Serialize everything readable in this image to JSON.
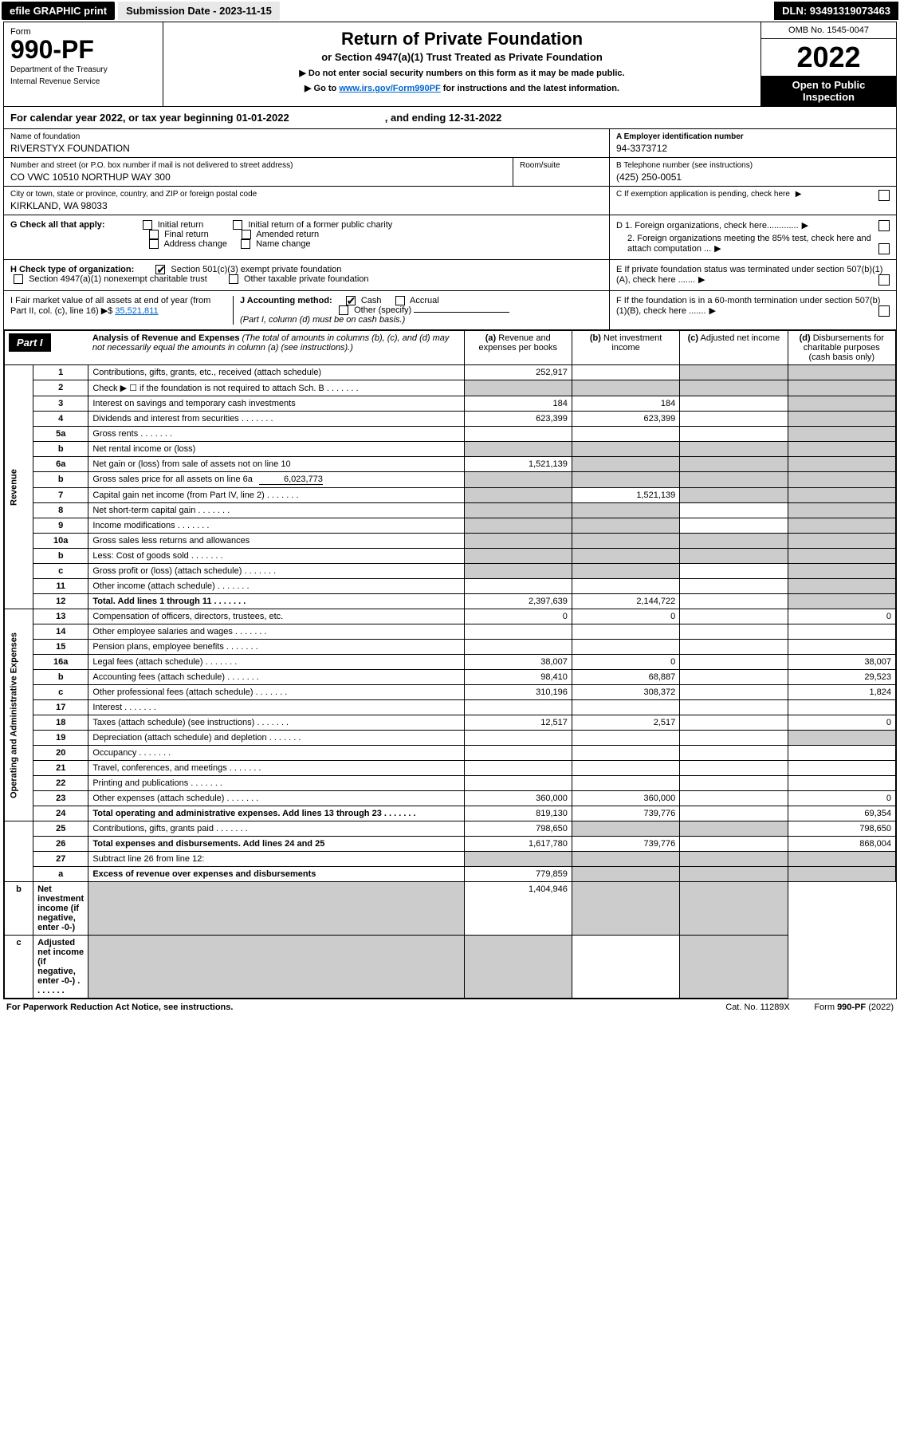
{
  "topbar": {
    "efile": "efile GRAPHIC print",
    "subdate_label": "Submission Date - 2023-11-15",
    "dln": "DLN: 93491319073463"
  },
  "header": {
    "form_label": "Form",
    "form_num": "990-PF",
    "dept1": "Department of the Treasury",
    "dept2": "Internal Revenue Service",
    "title": "Return of Private Foundation",
    "subtitle": "or Section 4947(a)(1) Trust Treated as Private Foundation",
    "instr1": "▶ Do not enter social security numbers on this form as it may be made public.",
    "instr2_pre": "▶ Go to ",
    "instr2_link": "www.irs.gov/Form990PF",
    "instr2_post": " for instructions and the latest information.",
    "omb": "OMB No. 1545-0047",
    "year": "2022",
    "open_pub1": "Open to Public",
    "open_pub2": "Inspection"
  },
  "calyear": {
    "left": "For calendar year 2022, or tax year beginning 01-01-2022",
    "right": ", and ending 12-31-2022"
  },
  "org": {
    "name_label": "Name of foundation",
    "name": "RIVERSTYX FOUNDATION",
    "addr_label": "Number and street (or P.O. box number if mail is not delivered to street address)",
    "addr": "CO VWC 10510 NORTHUP WAY 300",
    "room_label": "Room/suite",
    "room": "",
    "city_label": "City or town, state or province, country, and ZIP or foreign postal code",
    "city": "KIRKLAND, WA  98033",
    "ein_label": "A Employer identification number",
    "ein": "94-3373712",
    "tel_label": "B Telephone number (see instructions)",
    "tel": "(425) 250-0051",
    "c_label": "C If exemption application is pending, check here",
    "d1": "D 1. Foreign organizations, check here.............",
    "d2": "2. Foreign organizations meeting the 85% test, check here and attach computation ...",
    "e": "E If private foundation status was terminated under section 507(b)(1)(A), check here .......",
    "f": "F If the foundation is in a 60-month termination under section 507(b)(1)(B), check here .......",
    "g_label": "G Check all that apply:",
    "g_opts": [
      "Initial return",
      "Initial return of a former public charity",
      "Final return",
      "Amended return",
      "Address change",
      "Name change"
    ],
    "h_label": "H Check type of organization:",
    "h_opts": [
      "Section 501(c)(3) exempt private foundation",
      "Section 4947(a)(1) nonexempt charitable trust",
      "Other taxable private foundation"
    ],
    "i_label": "I Fair market value of all assets at end of year (from Part II, col. (c), line 16) ▶$",
    "i_val": "35,521,811",
    "j_label": "J Accounting method:",
    "j_opts": [
      "Cash",
      "Accrual",
      "Other (specify)"
    ],
    "j_note": "(Part I, column (d) must be on cash basis.)"
  },
  "part1": {
    "label": "Part I",
    "title": "Analysis of Revenue and Expenses",
    "title_note": " (The total of amounts in columns (b), (c), and (d) may not necessarily equal the amounts in column (a) (see instructions).)",
    "cols": {
      "a": "(a) Revenue and expenses per books",
      "b": "(b) Net investment income",
      "c": "(c) Adjusted net income",
      "d": "(d) Disbursements for charitable purposes (cash basis only)"
    }
  },
  "sidebars": {
    "rev": "Revenue",
    "exp": "Operating and Administrative Expenses"
  },
  "rows": [
    {
      "n": "1",
      "desc": "Contributions, gifts, grants, etc., received (attach schedule)",
      "a": "252,917",
      "b": "",
      "c": "shaded",
      "d": "shaded"
    },
    {
      "n": "2",
      "desc": "Check ▶ ☐ if the foundation is not required to attach Sch. B",
      "a": "shaded",
      "b": "shaded",
      "c": "shaded",
      "d": "shaded",
      "dots": true
    },
    {
      "n": "3",
      "desc": "Interest on savings and temporary cash investments",
      "a": "184",
      "b": "184",
      "c": "",
      "d": "shaded"
    },
    {
      "n": "4",
      "desc": "Dividends and interest from securities",
      "a": "623,399",
      "b": "623,399",
      "c": "",
      "d": "shaded",
      "dots": true
    },
    {
      "n": "5a",
      "desc": "Gross rents",
      "a": "",
      "b": "",
      "c": "",
      "d": "shaded",
      "dots": true
    },
    {
      "n": "b",
      "desc": "Net rental income or (loss)",
      "a": "shaded",
      "b": "shaded",
      "c": "shaded",
      "d": "shaded",
      "inset": true
    },
    {
      "n": "6a",
      "desc": "Net gain or (loss) from sale of assets not on line 10",
      "a": "1,521,139",
      "b": "shaded",
      "c": "shaded",
      "d": "shaded"
    },
    {
      "n": "b",
      "desc": "Gross sales price for all assets on line 6a",
      "a": "shaded",
      "b": "shaded",
      "c": "shaded",
      "d": "shaded",
      "inset": true,
      "inset_val": "6,023,773"
    },
    {
      "n": "7",
      "desc": "Capital gain net income (from Part IV, line 2)",
      "a": "shaded",
      "b": "1,521,139",
      "c": "shaded",
      "d": "shaded",
      "dots": true
    },
    {
      "n": "8",
      "desc": "Net short-term capital gain",
      "a": "shaded",
      "b": "shaded",
      "c": "",
      "d": "shaded",
      "dots": true
    },
    {
      "n": "9",
      "desc": "Income modifications",
      "a": "shaded",
      "b": "shaded",
      "c": "",
      "d": "shaded",
      "dots": true
    },
    {
      "n": "10a",
      "desc": "Gross sales less returns and allowances",
      "a": "shaded",
      "b": "shaded",
      "c": "shaded",
      "d": "shaded",
      "inset": true
    },
    {
      "n": "b",
      "desc": "Less: Cost of goods sold",
      "a": "shaded",
      "b": "shaded",
      "c": "shaded",
      "d": "shaded",
      "inset": true,
      "dots": true
    },
    {
      "n": "c",
      "desc": "Gross profit or (loss) (attach schedule)",
      "a": "shaded",
      "b": "shaded",
      "c": "",
      "d": "shaded",
      "dots": true
    },
    {
      "n": "11",
      "desc": "Other income (attach schedule)",
      "a": "",
      "b": "",
      "c": "",
      "d": "shaded",
      "dots": true
    },
    {
      "n": "12",
      "desc": "Total. Add lines 1 through 11",
      "a": "2,397,639",
      "b": "2,144,722",
      "c": "",
      "d": "shaded",
      "bold": true,
      "dots": true
    },
    {
      "n": "13",
      "desc": "Compensation of officers, directors, trustees, etc.",
      "a": "0",
      "b": "0",
      "c": "",
      "d": "0",
      "section": "exp"
    },
    {
      "n": "14",
      "desc": "Other employee salaries and wages",
      "a": "",
      "b": "",
      "c": "",
      "d": "",
      "dots": true
    },
    {
      "n": "15",
      "desc": "Pension plans, employee benefits",
      "a": "",
      "b": "",
      "c": "",
      "d": "",
      "dots": true
    },
    {
      "n": "16a",
      "desc": "Legal fees (attach schedule)",
      "a": "38,007",
      "b": "0",
      "c": "",
      "d": "38,007",
      "dots": true
    },
    {
      "n": "b",
      "desc": "Accounting fees (attach schedule)",
      "a": "98,410",
      "b": "68,887",
      "c": "",
      "d": "29,523",
      "dots": true
    },
    {
      "n": "c",
      "desc": "Other professional fees (attach schedule)",
      "a": "310,196",
      "b": "308,372",
      "c": "",
      "d": "1,824",
      "dots": true
    },
    {
      "n": "17",
      "desc": "Interest",
      "a": "",
      "b": "",
      "c": "",
      "d": "",
      "dots": true
    },
    {
      "n": "18",
      "desc": "Taxes (attach schedule) (see instructions)",
      "a": "12,517",
      "b": "2,517",
      "c": "",
      "d": "0",
      "dots": true
    },
    {
      "n": "19",
      "desc": "Depreciation (attach schedule) and depletion",
      "a": "",
      "b": "",
      "c": "",
      "d": "shaded",
      "dots": true
    },
    {
      "n": "20",
      "desc": "Occupancy",
      "a": "",
      "b": "",
      "c": "",
      "d": "",
      "dots": true
    },
    {
      "n": "21",
      "desc": "Travel, conferences, and meetings",
      "a": "",
      "b": "",
      "c": "",
      "d": "",
      "dots": true
    },
    {
      "n": "22",
      "desc": "Printing and publications",
      "a": "",
      "b": "",
      "c": "",
      "d": "",
      "dots": true
    },
    {
      "n": "23",
      "desc": "Other expenses (attach schedule)",
      "a": "360,000",
      "b": "360,000",
      "c": "",
      "d": "0",
      "dots": true
    },
    {
      "n": "24",
      "desc": "Total operating and administrative expenses. Add lines 13 through 23",
      "a": "819,130",
      "b": "739,776",
      "c": "",
      "d": "69,354",
      "bold": true,
      "dots": true
    },
    {
      "n": "25",
      "desc": "Contributions, gifts, grants paid",
      "a": "798,650",
      "b": "shaded",
      "c": "shaded",
      "d": "798,650",
      "dots": true
    },
    {
      "n": "26",
      "desc": "Total expenses and disbursements. Add lines 24 and 25",
      "a": "1,617,780",
      "b": "739,776",
      "c": "",
      "d": "868,004",
      "bold": true
    },
    {
      "n": "27",
      "desc": "Subtract line 26 from line 12:",
      "a": "shaded",
      "b": "shaded",
      "c": "shaded",
      "d": "shaded",
      "section": "last"
    },
    {
      "n": "a",
      "desc": "Excess of revenue over expenses and disbursements",
      "a": "779,859",
      "b": "shaded",
      "c": "shaded",
      "d": "shaded",
      "bold": true
    },
    {
      "n": "b",
      "desc": "Net investment income (if negative, enter -0-)",
      "a": "shaded",
      "b": "1,404,946",
      "c": "shaded",
      "d": "shaded",
      "bold": true
    },
    {
      "n": "c",
      "desc": "Adjusted net income (if negative, enter -0-)",
      "a": "shaded",
      "b": "shaded",
      "c": "",
      "d": "shaded",
      "bold": true,
      "dots": true
    }
  ],
  "footer": {
    "left": "For Paperwork Reduction Act Notice, see instructions.",
    "cat": "Cat. No. 11289X",
    "form": "Form 990-PF (2022)"
  },
  "colwidths": {
    "lineno": 40,
    "desc": 470,
    "val": 135
  }
}
